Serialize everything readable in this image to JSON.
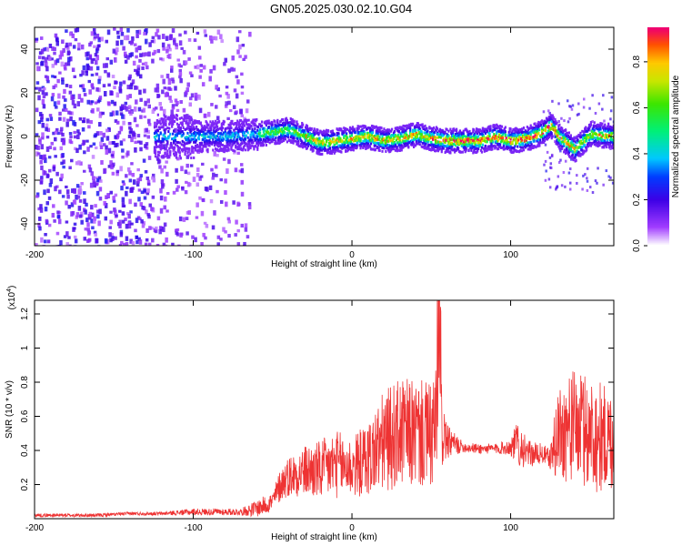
{
  "title": "GN05.2025.030.02.10.G04",
  "chart_data": [
    {
      "type": "heatmap",
      "xlabel": "Height of straight line (km)",
      "ylabel": "Frequency (Hz)",
      "xlim": [
        -200,
        165
      ],
      "ylim": [
        -50,
        50
      ],
      "xticks": [
        -200,
        -100,
        0,
        100
      ],
      "yticks": [
        40,
        20,
        0,
        -20,
        -40
      ],
      "colorbar": {
        "label": "Normalized spectral amplitude",
        "range": [
          0,
          0.95
        ],
        "ticks": [
          "0.0",
          "0.2",
          "0.4",
          "0.6",
          "0.8"
        ]
      },
      "band_center_hz": {
        "x": [
          -120,
          -100,
          -80,
          -60,
          -50,
          -40,
          -30,
          -20,
          -10,
          0,
          10,
          20,
          30,
          40,
          50,
          60,
          70,
          80,
          90,
          100,
          110,
          120,
          125,
          130,
          140,
          150,
          165
        ],
        "y": [
          0,
          0,
          0,
          1,
          2,
          3,
          0,
          -3,
          -2,
          -1,
          0,
          -2,
          -1,
          1,
          -1,
          -2,
          -2,
          -2,
          0,
          -2,
          -1,
          2,
          5,
          0,
          -6,
          1,
          0
        ]
      }
    },
    {
      "type": "line",
      "xlabel": "Height of straight line (km)",
      "ylabel": "SNR (10 * v/v)",
      "yunit_label": "(x10",
      "yunit_exp": "4",
      "xlim": [
        -200,
        165
      ],
      "ylim": [
        0,
        1.28
      ],
      "xticks": [
        -200,
        -100,
        0,
        100
      ],
      "yticks": [
        0.2,
        0.4,
        0.6,
        0.8,
        1.0,
        1.2
      ],
      "series": [
        {
          "color": "#ee3333",
          "x": [
            -200,
            -180,
            -160,
            -140,
            -120,
            -100,
            -80,
            -70,
            -60,
            -50,
            -45,
            -40,
            -30,
            -20,
            -10,
            0,
            10,
            20,
            30,
            40,
            50,
            55,
            60,
            70,
            80,
            90,
            100,
            105,
            110,
            120,
            125,
            130,
            140,
            150,
            165
          ],
          "y": [
            0.02,
            0.02,
            0.02,
            0.03,
            0.03,
            0.04,
            0.04,
            0.04,
            0.06,
            0.1,
            0.2,
            0.25,
            0.28,
            0.28,
            0.32,
            0.3,
            0.35,
            0.45,
            0.5,
            0.5,
            0.48,
            0.58,
            0.45,
            0.42,
            0.41,
            0.41,
            0.42,
            0.45,
            0.38,
            0.38,
            0.35,
            0.5,
            0.55,
            0.5,
            0.45
          ],
          "amp": [
            0.01,
            0.01,
            0.01,
            0.01,
            0.01,
            0.02,
            0.02,
            0.02,
            0.05,
            0.06,
            0.1,
            0.12,
            0.15,
            0.18,
            0.2,
            0.18,
            0.22,
            0.3,
            0.32,
            0.32,
            0.32,
            0.35,
            0.1,
            0.03,
            0.03,
            0.03,
            0.05,
            0.15,
            0.08,
            0.06,
            0.06,
            0.3,
            0.32,
            0.35,
            0.3
          ]
        }
      ]
    }
  ]
}
